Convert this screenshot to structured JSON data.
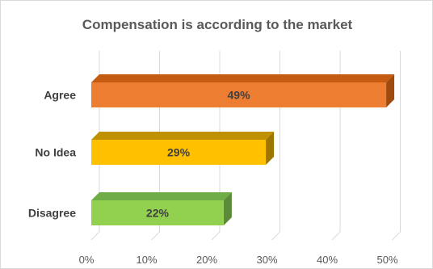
{
  "chart_data": {
    "type": "bar",
    "orientation": "horizontal",
    "title": "Compensation  is according to the market",
    "categories": [
      "Agree",
      "No Idea",
      "Disagree"
    ],
    "values": [
      49,
      29,
      22
    ],
    "data_labels": [
      "49%",
      "29%",
      "22%"
    ],
    "xlim": [
      0,
      50
    ],
    "x_ticks": [
      0,
      10,
      20,
      30,
      40,
      50
    ],
    "x_tick_labels": [
      "0%",
      "10%",
      "20%",
      "30%",
      "40%",
      "50%"
    ],
    "grid": "vertical",
    "legend": "none",
    "style": "3d",
    "colors": [
      "#ED7D31",
      "#FFC000",
      "#92D050"
    ],
    "colors_top": [
      "#C55A11",
      "#BF9000",
      "#70AD47"
    ],
    "colors_side": [
      "#A04A0E",
      "#9C7600",
      "#5A8A3A"
    ]
  }
}
